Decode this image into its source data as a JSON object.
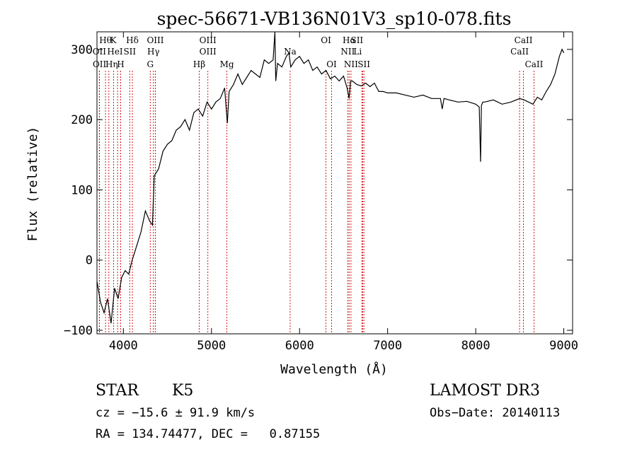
{
  "chart_data": {
    "type": "line",
    "title": "spec-56671-VB136N01V3_sp10-078.fits",
    "xlabel": "Wavelength (Å)",
    "ylabel": "Flux (relative)",
    "xlim": [
      3700,
      9100
    ],
    "ylim": [
      -105,
      325
    ],
    "xticks": [
      4000,
      5000,
      6000,
      7000,
      8000,
      9000
    ],
    "yticks": [
      -100,
      0,
      100,
      200,
      300
    ],
    "grid": false,
    "line_color": "#000000",
    "marker_color": "#cc0000",
    "series": [
      {
        "x": [
          3700,
          3740,
          3780,
          3820,
          3860,
          3900,
          3940,
          3980,
          4020,
          4060,
          4100,
          4150,
          4200,
          4250,
          4300,
          4330,
          4350,
          4400,
          4450,
          4500,
          4550,
          4600,
          4650,
          4700,
          4750,
          4800,
          4850,
          4900,
          4950,
          5000,
          5050,
          5100,
          5150,
          5180,
          5200,
          5250,
          5300,
          5350,
          5400,
          5450,
          5500,
          5550,
          5600,
          5650,
          5700,
          5720,
          5730,
          5750,
          5800,
          5850,
          5880,
          5900,
          5950,
          6000,
          6050,
          6100,
          6150,
          6200,
          6250,
          6300,
          6350,
          6400,
          6450,
          6500,
          6540,
          6563,
          6580,
          6600,
          6650,
          6700,
          6750,
          6800,
          6850,
          6900,
          6950,
          7000,
          7100,
          7200,
          7300,
          7400,
          7500,
          7600,
          7620,
          7640,
          7700,
          7800,
          7900,
          8000,
          8040,
          8055,
          8065,
          8080,
          8100,
          8200,
          8300,
          8400,
          8500,
          8550,
          8600,
          8650,
          8700,
          8750,
          8800,
          8850,
          8900,
          8950,
          8980,
          9000
        ],
        "values": [
          -30,
          -60,
          -75,
          -55,
          -90,
          -40,
          -55,
          -25,
          -15,
          -20,
          0,
          20,
          40,
          70,
          55,
          50,
          120,
          130,
          155,
          165,
          170,
          185,
          190,
          200,
          185,
          210,
          215,
          205,
          225,
          215,
          225,
          230,
          245,
          195,
          240,
          250,
          265,
          250,
          260,
          270,
          265,
          260,
          285,
          280,
          285,
          325,
          255,
          280,
          275,
          290,
          295,
          275,
          285,
          290,
          280,
          285,
          270,
          275,
          265,
          270,
          258,
          262,
          255,
          262,
          245,
          230,
          255,
          255,
          250,
          248,
          252,
          247,
          252,
          240,
          240,
          238,
          238,
          235,
          232,
          235,
          230,
          230,
          215,
          230,
          228,
          225,
          226,
          222,
          218,
          140,
          220,
          225,
          225,
          228,
          222,
          225,
          230,
          228,
          225,
          222,
          232,
          228,
          240,
          250,
          265,
          290,
          300,
          295
        ]
      }
    ],
    "line_markers": [
      {
        "label": "Hθ",
        "x": 3797,
        "row": 1,
        "dx": 0
      },
      {
        "label": "OII",
        "x": 3727,
        "row": 2,
        "dx": 0
      },
      {
        "label": "OII",
        "x": 3729,
        "row": 3,
        "dx": 0
      },
      {
        "label": "K",
        "x": 3934,
        "row": 1,
        "dx": -6
      },
      {
        "label": "HeI",
        "x": 3889,
        "row": 2,
        "dx": 2
      },
      {
        "label": "Hη",
        "x": 3835,
        "row": 3,
        "dx": 4
      },
      {
        "label": "H",
        "x": 3969,
        "row": 3,
        "dx": 0
      },
      {
        "label": "Hδ",
        "x": 4102,
        "row": 1,
        "dx": 0
      },
      {
        "label": "SII",
        "x": 4072,
        "row": 2,
        "dx": 0
      },
      {
        "label": "OIII",
        "x": 4363,
        "row": 1,
        "dx": 0
      },
      {
        "label": "Hγ",
        "x": 4341,
        "row": 2,
        "dx": 0
      },
      {
        "label": "G",
        "x": 4305,
        "row": 3,
        "dx": 0
      },
      {
        "label": "OIII",
        "x": 4959,
        "row": 1,
        "dx": 0
      },
      {
        "label": "OIII",
        "x": 4959,
        "row": 2,
        "dx": 0
      },
      {
        "label": "Hβ",
        "x": 4861,
        "row": 3,
        "dx": 0
      },
      {
        "label": "Mg",
        "x": 5175,
        "row": 3,
        "dx": 0
      },
      {
        "label": "Na",
        "x": 5893,
        "row": 2,
        "dx": 0
      },
      {
        "label": "OI",
        "x": 6300,
        "row": 1,
        "dx": 0
      },
      {
        "label": "OI",
        "x": 6364,
        "row": 3,
        "dx": 0
      },
      {
        "label": "Hα",
        "x": 6563,
        "row": 1,
        "dx": 0
      },
      {
        "label": "SII",
        "x": 6716,
        "row": 1,
        "dx": -8
      },
      {
        "label": "NII",
        "x": 6548,
        "row": 2,
        "dx": 0
      },
      {
        "label": "Li",
        "x": 6708,
        "row": 2,
        "dx": -6
      },
      {
        "label": "NII",
        "x": 6584,
        "row": 3,
        "dx": 0
      },
      {
        "label": "SII",
        "x": 6731,
        "row": 3,
        "dx": 0
      },
      {
        "label": "CaII",
        "x": 8542,
        "row": 1,
        "dx": 0
      },
      {
        "label": "CaII",
        "x": 8498,
        "row": 2,
        "dx": 0
      },
      {
        "label": "CaII",
        "x": 8662,
        "row": 3,
        "dx": 0
      }
    ]
  },
  "info": {
    "class_label": "STAR",
    "subclass": "K5",
    "survey": "LAMOST DR3",
    "cz": "cz = −15.6 ± 91.9 km/s",
    "obs_date": "Obs−Date: 20140113",
    "coords": "RA = 134.74477, DEC =   0.87155"
  }
}
